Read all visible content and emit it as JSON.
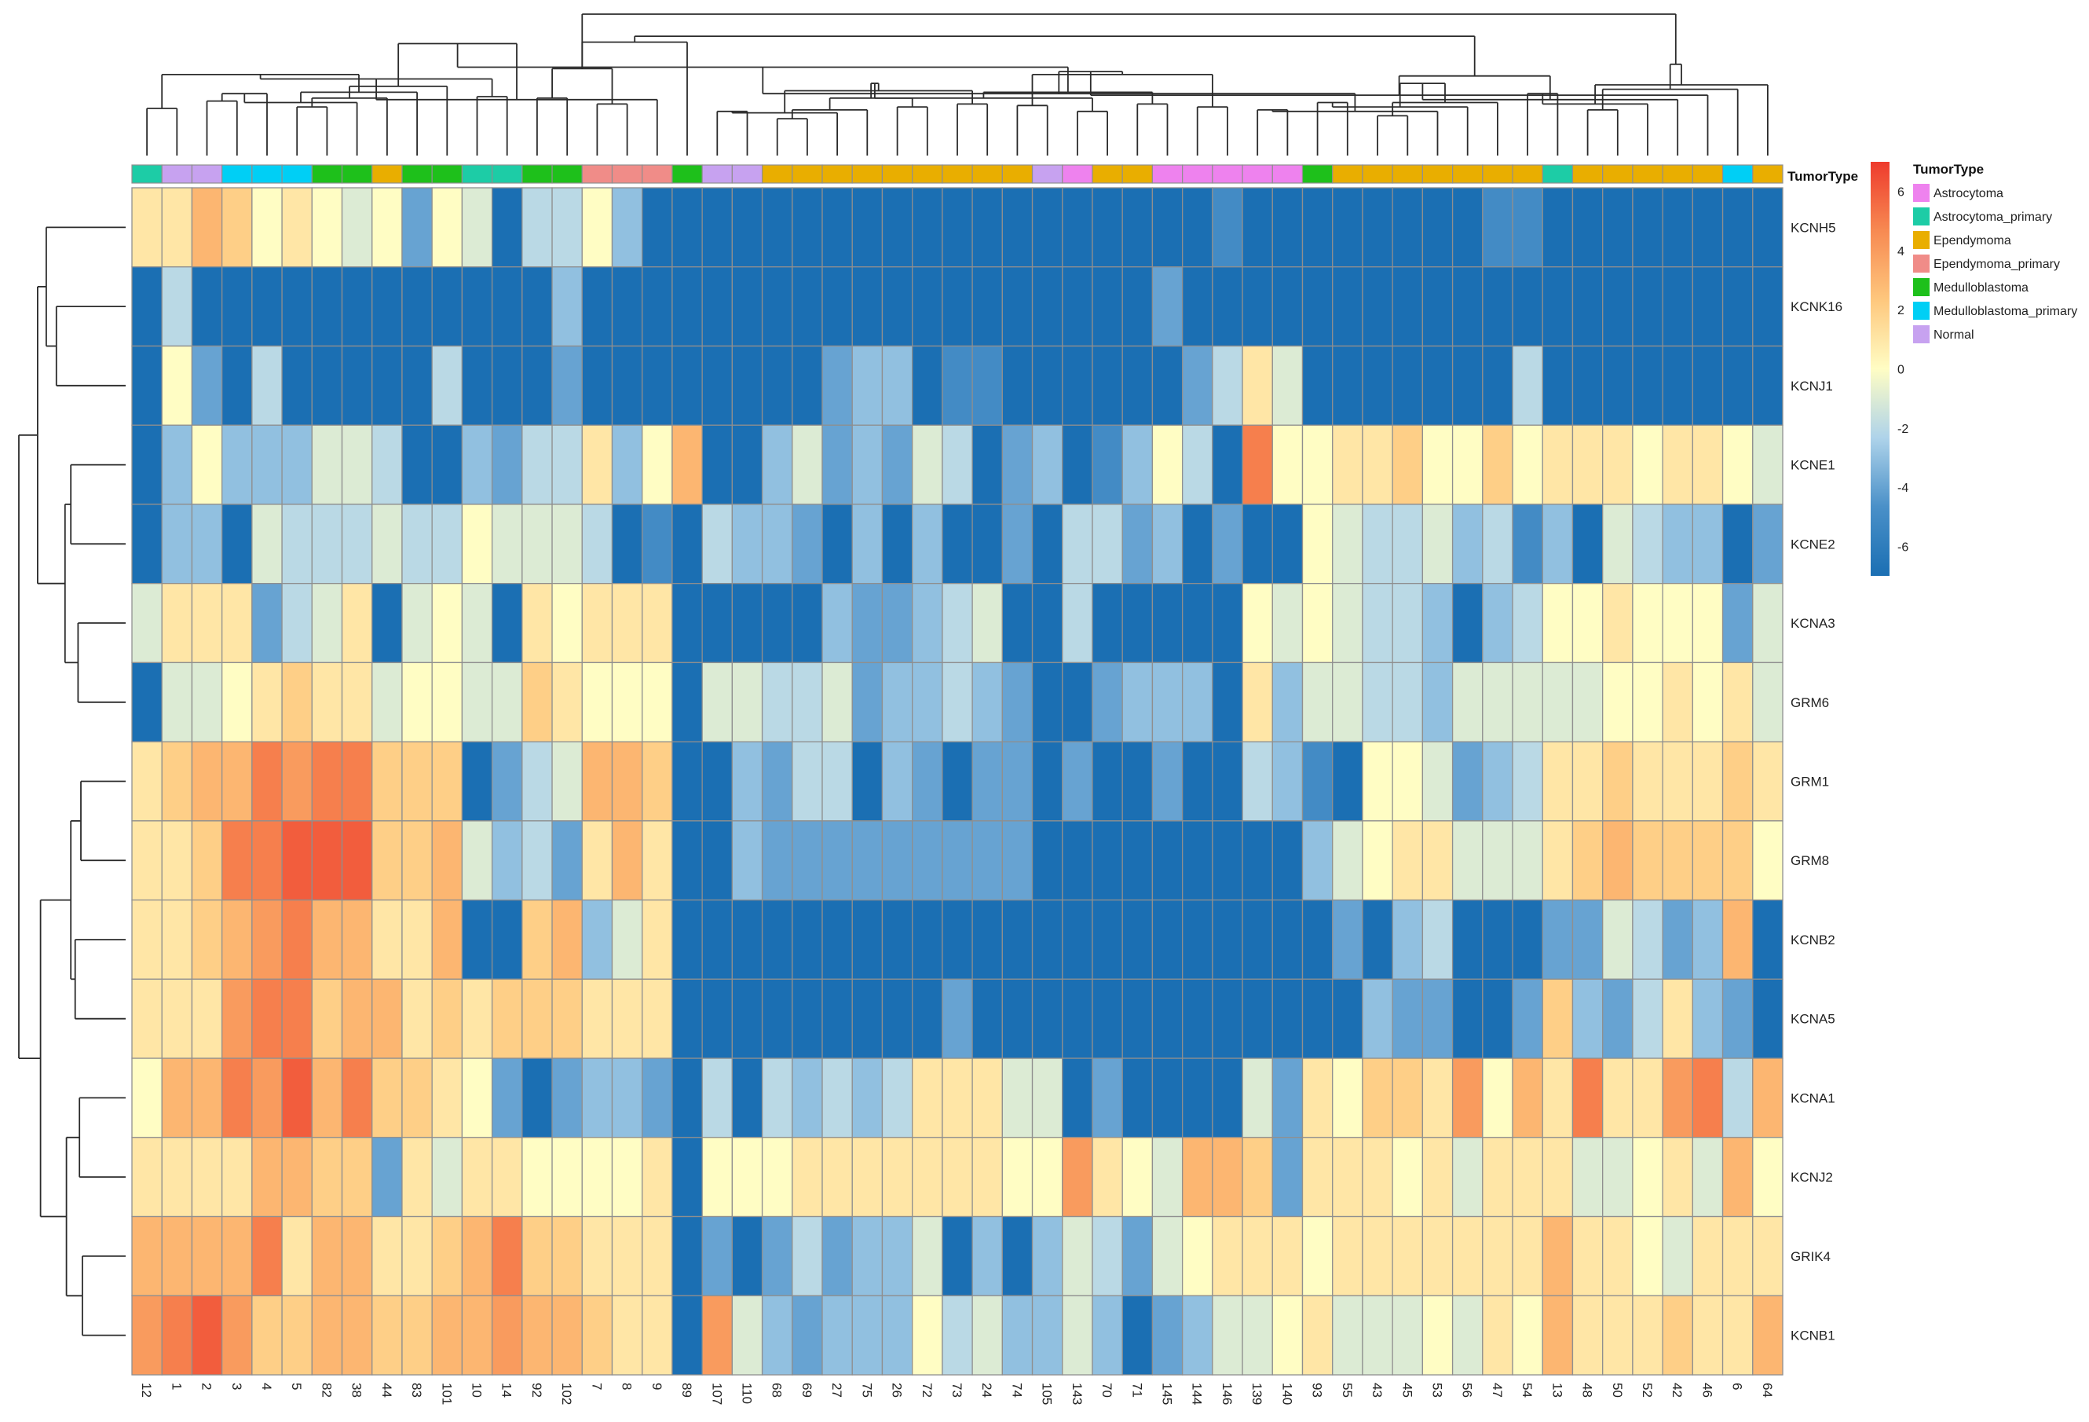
{
  "chart_data": {
    "type": "heatmap",
    "title": "",
    "xlabel": "",
    "ylabel": "",
    "samples": [
      "12",
      "1",
      "2",
      "3",
      "4",
      "5",
      "82",
      "38",
      "44",
      "83",
      "101",
      "10",
      "14",
      "92",
      "102",
      "7",
      "8",
      "9",
      "89",
      "107",
      "110",
      "68",
      "69",
      "27",
      "75",
      "26",
      "72",
      "73",
      "24",
      "74",
      "105",
      "143",
      "70",
      "71",
      "145",
      "144",
      "146",
      "139",
      "140",
      "93",
      "55",
      "43",
      "45",
      "53",
      "56",
      "47",
      "54",
      "13",
      "48",
      "50",
      "52",
      "42",
      "46",
      "6",
      "64"
    ],
    "genes": [
      "KCNH5",
      "KCNK16",
      "KCNJ1",
      "KCNE1",
      "KCNE2",
      "KCNA3",
      "GRM6",
      "GRM1",
      "GRM8",
      "KCNB2",
      "KCNA5",
      "KCNA1",
      "KCNJ2",
      "GRIK4",
      "KCNB1"
    ],
    "annotation": {
      "label": "TumorType",
      "values": [
        "Astrocytoma_primary",
        "Normal",
        "Normal",
        "Medulloblastoma_primary",
        "Medulloblastoma_primary",
        "Medulloblastoma_primary",
        "Medulloblastoma",
        "Medulloblastoma",
        "Ependymoma",
        "Medulloblastoma",
        "Medulloblastoma",
        "Astrocytoma_primary",
        "Astrocytoma_primary",
        "Medulloblastoma",
        "Medulloblastoma",
        "Ependymoma_primary",
        "Ependymoma_primary",
        "Ependymoma_primary",
        "Medulloblastoma",
        "Normal",
        "Normal",
        "Ependymoma",
        "Ependymoma",
        "Ependymoma",
        "Ependymoma",
        "Ependymoma",
        "Ependymoma",
        "Ependymoma",
        "Ependymoma",
        "Ependymoma",
        "Normal",
        "Astrocytoma",
        "Ependymoma",
        "Ependymoma",
        "Astrocytoma",
        "Astrocytoma",
        "Astrocytoma",
        "Astrocytoma",
        "Astrocytoma",
        "Medulloblastoma",
        "Ependymoma",
        "Ependymoma",
        "Ependymoma",
        "Ependymoma",
        "Ependymoma",
        "Ependymoma",
        "Ependymoma",
        "Astrocytoma_primary",
        "Ependymoma",
        "Ependymoma",
        "Ependymoma",
        "Ependymoma",
        "Ependymoma",
        "Medulloblastoma_primary",
        "Ependymoma"
      ]
    },
    "values": [
      [
        1,
        1,
        3,
        2,
        0,
        1,
        0,
        -1,
        0,
        -4,
        0,
        -1,
        -7,
        -2,
        -2,
        0,
        -3,
        -7,
        -7,
        -7,
        -7,
        -7,
        -7,
        -7,
        -7,
        -7,
        -7,
        -7,
        -7,
        -7,
        -7,
        -7,
        -7,
        -7,
        -7,
        -7,
        -5,
        -7,
        -7,
        -7,
        -7,
        -7,
        -7,
        -7,
        -7,
        -5,
        -5,
        -7,
        -7,
        -7,
        -7,
        -7,
        -7,
        -7,
        -7
      ],
      [
        -7,
        -2,
        -7,
        -7,
        -7,
        -7,
        -7,
        -7,
        -7,
        -7,
        -7,
        -7,
        -7,
        -7,
        -3,
        -7,
        -7,
        -7,
        -7,
        -7,
        -7,
        -7,
        -7,
        -7,
        -7,
        -7,
        -7,
        -7,
        -7,
        -7,
        -7,
        -7,
        -7,
        -7,
        -4,
        -7,
        -7,
        -7,
        -7,
        -7,
        -7,
        -7,
        -7,
        -7,
        -7,
        -7,
        -7,
        -7,
        -7,
        -7,
        -7,
        -7,
        -7,
        -7,
        -7
      ],
      [
        -7,
        0,
        -4,
        -7,
        -2,
        -7,
        -7,
        -7,
        -7,
        -7,
        -2,
        -7,
        -7,
        -7,
        -4,
        -7,
        -7,
        -7,
        -7,
        -7,
        -7,
        -7,
        -7,
        -4,
        -3,
        -3,
        -7,
        -5,
        -5,
        -7,
        -7,
        -7,
        -7,
        -7,
        -7,
        -4,
        -2,
        1,
        -1,
        -7,
        -7,
        -7,
        -7,
        -7,
        -7,
        -7,
        -2,
        -7,
        -7,
        -7,
        -7,
        -7,
        -7,
        -7,
        -7
      ],
      [
        -7,
        -3,
        0,
        -3,
        -3,
        -3,
        -1,
        -1,
        -2,
        -7,
        -7,
        -3,
        -4,
        -2,
        -2,
        1,
        -3,
        0,
        3,
        -7,
        -7,
        -3,
        -1,
        -4,
        -3,
        -4,
        -1,
        -2,
        -7,
        -4,
        -3,
        -7,
        -5,
        -3,
        0,
        -2,
        -7,
        5,
        0,
        0,
        1,
        1,
        2,
        0,
        0,
        2,
        0,
        1,
        1,
        1,
        0,
        1,
        1,
        0,
        -1
      ],
      [
        -7,
        -3,
        -3,
        -7,
        -1,
        -2,
        -2,
        -2,
        -1,
        -2,
        -2,
        0,
        -1,
        -1,
        -1,
        -2,
        -7,
        -5,
        -7,
        -2,
        -3,
        -3,
        -4,
        -7,
        -3,
        -7,
        -3,
        -7,
        -7,
        -4,
        -7,
        -2,
        -2,
        -4,
        -3,
        -7,
        -4,
        -7,
        -7,
        0,
        -1,
        -2,
        -2,
        -1,
        -3,
        -2,
        -5,
        -3,
        -7,
        -1,
        -2,
        -3,
        -3,
        -7,
        -4
      ],
      [
        -1,
        1,
        1,
        1,
        -4,
        -2,
        -1,
        1,
        -7,
        -1,
        0,
        -1,
        -7,
        1,
        0,
        1,
        1,
        1,
        -7,
        -7,
        -7,
        -7,
        -7,
        -3,
        -4,
        -4,
        -3,
        -2,
        -1,
        -7,
        -7,
        -2,
        -7,
        -7,
        -7,
        -7,
        -7,
        0,
        -1,
        0,
        -1,
        -2,
        -2,
        -3,
        -7,
        -3,
        -2,
        0,
        0,
        1,
        0,
        0,
        0,
        -4,
        -1
      ],
      [
        -7,
        -1,
        -1,
        0,
        1,
        2,
        1,
        1,
        -1,
        0,
        0,
        -1,
        -1,
        2,
        1,
        0,
        0,
        0,
        -7,
        -1,
        -1,
        -2,
        -2,
        -1,
        -4,
        -3,
        -3,
        -2,
        -3,
        -4,
        -7,
        -7,
        -4,
        -3,
        -3,
        -3,
        -7,
        1,
        -3,
        -1,
        -1,
        -2,
        -2,
        -3,
        -1,
        -1,
        -1,
        -1,
        -1,
        0,
        0,
        1,
        0,
        1,
        -1
      ],
      [
        1,
        2,
        3,
        3,
        5,
        4,
        5,
        5,
        2,
        2,
        2,
        -7,
        -4,
        -2,
        -1,
        3,
        3,
        2,
        -7,
        -7,
        -3,
        -4,
        -2,
        -2,
        -7,
        -3,
        -4,
        -7,
        -4,
        -4,
        -7,
        -4,
        -7,
        -7,
        -4,
        -7,
        -7,
        -2,
        -3,
        -5,
        -7,
        0,
        0,
        -1,
        -4,
        -3,
        -2,
        1,
        1,
        2,
        1,
        1,
        1,
        2,
        1
      ],
      [
        1,
        1,
        2,
        5,
        5,
        6,
        6,
        6,
        2,
        2,
        3,
        -1,
        -3,
        -2,
        -4,
        1,
        3,
        1,
        -7,
        -7,
        -3,
        -4,
        -4,
        -4,
        -4,
        -4,
        -4,
        -4,
        -4,
        -4,
        -7,
        -7,
        -7,
        -7,
        -7,
        -7,
        -7,
        -7,
        -7,
        -3,
        -1,
        0,
        1,
        1,
        -1,
        -1,
        -1,
        1,
        2,
        3,
        2,
        2,
        2,
        2,
        0
      ],
      [
        1,
        1,
        2,
        3,
        4,
        5,
        3,
        3,
        1,
        1,
        3,
        -7,
        -7,
        2,
        3,
        -3,
        -1,
        1,
        -7,
        -7,
        -7,
        -7,
        -7,
        -7,
        -7,
        -7,
        -7,
        -7,
        -7,
        -7,
        -7,
        -7,
        -7,
        -7,
        -7,
        -7,
        -7,
        -7,
        -7,
        -7,
        -4,
        -7,
        -3,
        -2,
        -7,
        -7,
        -7,
        -4,
        -4,
        -1,
        -2,
        -4,
        -3,
        3,
        -7
      ],
      [
        1,
        1,
        1,
        4,
        5,
        5,
        2,
        3,
        3,
        1,
        2,
        1,
        2,
        2,
        2,
        1,
        1,
        1,
        -7,
        -7,
        -7,
        -7,
        -7,
        -7,
        -7,
        -7,
        -7,
        -4,
        -7,
        -7,
        -7,
        -7,
        -7,
        -7,
        -7,
        -7,
        -7,
        -7,
        -7,
        -7,
        -7,
        -3,
        -4,
        -4,
        -7,
        -7,
        -4,
        2,
        -3,
        -4,
        -2,
        1,
        -3,
        -4,
        -7
      ],
      [
        0,
        3,
        3,
        5,
        4,
        6,
        3,
        5,
        2,
        2,
        1,
        0,
        -4,
        -7,
        -4,
        -3,
        -3,
        -4,
        -7,
        -2,
        -7,
        -2,
        -3,
        -2,
        -3,
        -2,
        1,
        1,
        1,
        -1,
        -1,
        -7,
        -4,
        -7,
        -7,
        -7,
        -7,
        -1,
        -4,
        1,
        0,
        2,
        2,
        1,
        4,
        0,
        3,
        1,
        5,
        1,
        1,
        4,
        5,
        -2,
        3
      ],
      [
        1,
        1,
        1,
        1,
        3,
        3,
        2,
        2,
        -4,
        1,
        -1,
        1,
        1,
        0,
        0,
        0,
        0,
        1,
        -7,
        0,
        0,
        0,
        1,
        1,
        1,
        1,
        1,
        1,
        1,
        0,
        0,
        4,
        1,
        0,
        -1,
        3,
        3,
        2,
        -4,
        1,
        1,
        1,
        0,
        1,
        -1,
        1,
        1,
        1,
        -1,
        -1,
        0,
        1,
        -1,
        3,
        0
      ],
      [
        3,
        3,
        3,
        3,
        5,
        1,
        3,
        3,
        1,
        1,
        2,
        3,
        5,
        2,
        2,
        1,
        1,
        1,
        -7,
        -4,
        -7,
        -4,
        -2,
        -4,
        -3,
        -3,
        -1,
        -7,
        -3,
        -7,
        -3,
        -1,
        -2,
        -4,
        -1,
        0,
        1,
        1,
        1,
        0,
        1,
        1,
        1,
        1,
        1,
        1,
        1,
        3,
        1,
        1,
        0,
        -1,
        1,
        1,
        1
      ],
      [
        4,
        5,
        6,
        4,
        2,
        2,
        3,
        3,
        2,
        2,
        3,
        3,
        4,
        3,
        3,
        2,
        1,
        1,
        -7,
        4,
        -1,
        -3,
        -4,
        -3,
        -3,
        -3,
        0,
        -2,
        -1,
        -3,
        -3,
        -1,
        -3,
        -7,
        -4,
        -3,
        -1,
        -1,
        0,
        1,
        -1,
        -1,
        -1,
        0,
        -1,
        1,
        0,
        3,
        1,
        1,
        1,
        2,
        1,
        1,
        3
      ]
    ],
    "col_dendrogram": [
      [
        0,
        1,
        3.2
      ],
      [
        2,
        3,
        3.7
      ],
      [
        56,
        4,
        4.2
      ],
      [
        5,
        6,
        3.3
      ],
      [
        57,
        7,
        3.6
      ],
      [
        58,
        8,
        3.9
      ],
      [
        59,
        9,
        4.3
      ],
      [
        60,
        10,
        4.7
      ],
      [
        55,
        61,
        5.5
      ],
      [
        11,
        12,
        4.0
      ],
      [
        13,
        14,
        3.9
      ],
      [
        63,
        64,
        5.2
      ],
      [
        15,
        16,
        3.5
      ],
      [
        66,
        17,
        3.8
      ],
      [
        65,
        67,
        5.9
      ],
      [
        62,
        68,
        7.6
      ],
      [
        19,
        20,
        3.0
      ],
      [
        21,
        22,
        2.5
      ],
      [
        71,
        23,
        2.9
      ],
      [
        72,
        24,
        3.1
      ],
      [
        25,
        26,
        3.3
      ],
      [
        27,
        28,
        3.5
      ],
      [
        74,
        75,
        3.9
      ],
      [
        73,
        76,
        4.4
      ],
      [
        29,
        30,
        3.4
      ],
      [
        77,
        78,
        4.9
      ],
      [
        31,
        32,
        3.0
      ],
      [
        33,
        34,
        3.5
      ],
      [
        80,
        81,
        3.9
      ],
      [
        35,
        36,
        3.3
      ],
      [
        82,
        83,
        4.3
      ],
      [
        79,
        84,
        5.5
      ],
      [
        70,
        85,
        6.0
      ],
      [
        37,
        38,
        3.1
      ],
      [
        39,
        40,
        3.6
      ],
      [
        41,
        42,
        2.7
      ],
      [
        88,
        43,
        3.0
      ],
      [
        89,
        44,
        3.3
      ],
      [
        90,
        45,
        3.6
      ],
      [
        87,
        91,
        4.2
      ],
      [
        46,
        47,
        4.2
      ],
      [
        92,
        93,
        4.9
      ],
      [
        86,
        94,
        5.7
      ],
      [
        48,
        49,
        3.1
      ],
      [
        95,
        50,
        3.5
      ],
      [
        96,
        51,
        3.8
      ],
      [
        97,
        52,
        4.1
      ],
      [
        98,
        53,
        4.5
      ],
      [
        99,
        54,
        4.8
      ],
      [
        100,
        101,
        5.4
      ],
      [
        18,
        69,
        7.7
      ],
      [
        102,
        103,
        6.2
      ],
      [
        104,
        105,
        8.1
      ],
      [
        69,
        106,
        9.6
      ]
    ],
    "row_dendrogram": [
      [
        1,
        2,
        4.8
      ],
      [
        0,
        15,
        5.5
      ],
      [
        3,
        4,
        3.8
      ],
      [
        5,
        6,
        3.3
      ],
      [
        17,
        18,
        4.2
      ],
      [
        16,
        19,
        6.1
      ],
      [
        7,
        8,
        3.1
      ],
      [
        9,
        10,
        3.5
      ],
      [
        21,
        22,
        3.8
      ],
      [
        11,
        12,
        3.2
      ],
      [
        13,
        14,
        3.0
      ],
      [
        24,
        25,
        4.1
      ],
      [
        23,
        26,
        5.9
      ],
      [
        20,
        27,
        7.4
      ]
    ],
    "legend": {
      "title": "TumorType",
      "entries": [
        {
          "name": "Astrocytoma",
          "color": "#ee82ee"
        },
        {
          "name": "Astrocytoma_primary",
          "color": "#1dcca6"
        },
        {
          "name": "Ependymoma",
          "color": "#e9ae00"
        },
        {
          "name": "Ependymoma_primary",
          "color": "#f08c88"
        },
        {
          "name": "Medulloblastoma",
          "color": "#1ec01b"
        },
        {
          "name": "Medulloblastoma_primary",
          "color": "#00cff5"
        },
        {
          "name": "Normal",
          "color": "#c7a2f0"
        }
      ]
    },
    "colorbar": {
      "range": [
        -7,
        7
      ],
      "ticks": [
        6,
        4,
        2,
        0,
        -2,
        -4,
        -6
      ],
      "stops": [
        "#1b6fb3",
        "#4a90c8",
        "#aed3ea",
        "#fffdc4",
        "#fec77d",
        "#f78a52",
        "#ee3b2d"
      ]
    }
  }
}
